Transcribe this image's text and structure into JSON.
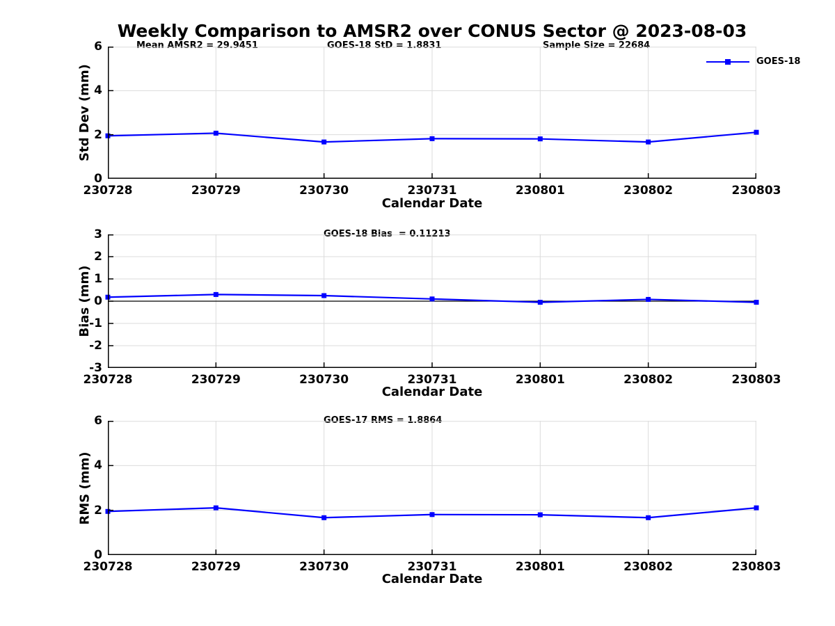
{
  "title": "Weekly Comparison to AMSR2 over CONUS Sector @ 2023-08-03",
  "colors": {
    "line": "#0000FF",
    "grid": "#DBDBDB",
    "axis": "#000000",
    "zero_line": "#000000"
  },
  "legend": {
    "label": "GOES-18",
    "position": "top-right"
  },
  "chart_data": [
    {
      "type": "line",
      "title": "",
      "ylabel": "Std Dev (mm)",
      "xlabel": "Calendar Date",
      "categories": [
        "230728",
        "230729",
        "230730",
        "230731",
        "230801",
        "230802",
        "230803"
      ],
      "series": [
        {
          "name": "GOES-18",
          "color": "#0000FF",
          "marker": "square",
          "values": [
            1.95,
            2.07,
            1.67,
            1.82,
            1.81,
            1.67,
            2.11
          ]
        }
      ],
      "ylim": [
        0,
        6
      ],
      "yticks": [
        0,
        2,
        4,
        6
      ],
      "grid": true,
      "zero_line": false,
      "annotations": [
        "Mean AMSR2 = 29.9451",
        "GOES-18 StD = 1.8831",
        "Sample Size = 22684"
      ]
    },
    {
      "type": "line",
      "title": "",
      "ylabel": "Bias (mm)",
      "xlabel": "Calendar Date",
      "categories": [
        "230728",
        "230729",
        "230730",
        "230731",
        "230801",
        "230802",
        "230803"
      ],
      "series": [
        {
          "name": "GOES-18",
          "color": "#0000FF",
          "marker": "square",
          "values": [
            0.18,
            0.3,
            0.25,
            0.1,
            -0.05,
            0.08,
            -0.05
          ]
        }
      ],
      "ylim": [
        -3,
        3
      ],
      "yticks": [
        -3,
        -2,
        -1,
        0,
        1,
        2,
        3
      ],
      "grid": true,
      "zero_line": true,
      "annotations": [
        "GOES-18 Bias  = 0.11213"
      ]
    },
    {
      "type": "line",
      "title": "",
      "ylabel": "RMS (mm)",
      "xlabel": "Calendar Date",
      "categories": [
        "230728",
        "230729",
        "230730",
        "230731",
        "230801",
        "230802",
        "230803"
      ],
      "series": [
        {
          "name": "GOES-18",
          "color": "#0000FF",
          "marker": "square",
          "values": [
            1.95,
            2.11,
            1.67,
            1.81,
            1.8,
            1.67,
            2.11
          ]
        }
      ],
      "ylim": [
        0,
        6
      ],
      "yticks": [
        0,
        2,
        4,
        6
      ],
      "grid": true,
      "zero_line": false,
      "annotations": [
        "GOES-17 RMS = 1.8864"
      ]
    }
  ]
}
